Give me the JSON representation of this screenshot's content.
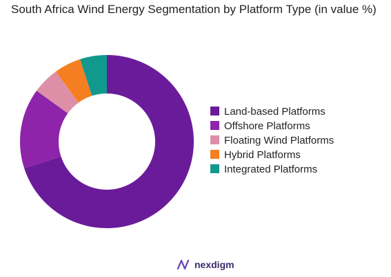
{
  "chart_data": {
    "type": "pie",
    "title": "South Africa Wind Energy Segmentation by Platform Type (in value %)",
    "categories": [
      "Land-based Platforms",
      "Offshore Platforms",
      "Floating Wind Platforms",
      "Hybrid Platforms",
      "Integrated Platforms"
    ],
    "values": [
      70,
      15,
      5,
      5,
      5
    ],
    "colors": [
      "#6a1b9a",
      "#8e24aa",
      "#de8fa8",
      "#f57f20",
      "#11998e"
    ],
    "legend_position": "right"
  },
  "footer": {
    "brand": "nexdigm"
  },
  "icons": {
    "brand_logo": "nexdigm-logo-icon"
  }
}
